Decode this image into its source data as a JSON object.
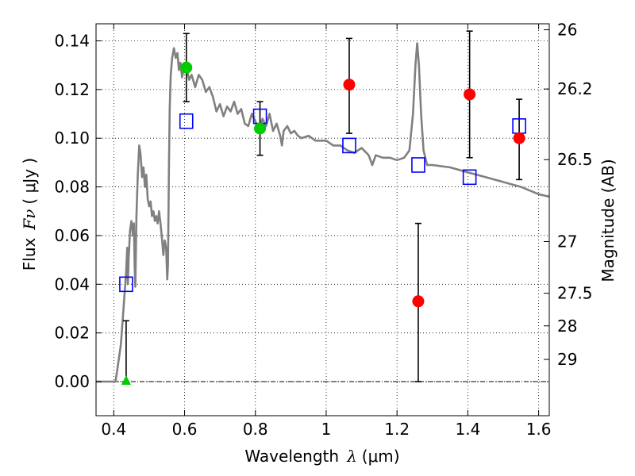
{
  "chart_data": {
    "type": "scatter",
    "xlabel_prefix": "Wavelength",
    "xlabel_symbol": "λ",
    "xlabel_unit": "(μm)",
    "ylabel_prefix": "Flux",
    "ylabel_symbol": "Fν",
    "ylabel_unit": "( μJy )",
    "y2label": "Magnitude (AB)",
    "xlim": [
      0.35,
      1.63
    ],
    "ylim": [
      -0.014,
      0.147
    ],
    "xticks": [
      0.4,
      0.6,
      0.8,
      1.0,
      1.2,
      1.4,
      1.6
    ],
    "xtick_labels": [
      "0.4",
      "0.6",
      "0.8",
      "1",
      "1.2",
      "1.4",
      "1.6"
    ],
    "yticks": [
      0.0,
      0.02,
      0.04,
      0.06,
      0.08,
      0.1,
      0.12,
      0.14
    ],
    "ytick_labels": [
      "0.00",
      "0.02",
      "0.04",
      "0.06",
      "0.08",
      "0.10",
      "0.12",
      "0.14"
    ],
    "magnitude_ticks": [
      {
        "mag": 26.0,
        "label": "26"
      },
      {
        "mag": 26.2,
        "label": "26.2"
      },
      {
        "mag": 26.5,
        "label": "26.5"
      },
      {
        "mag": 27.0,
        "label": "27"
      },
      {
        "mag": 27.5,
        "label": "27.5"
      },
      {
        "mag": 28.0,
        "label": "28"
      },
      {
        "mag": 29.0,
        "label": "29"
      }
    ],
    "grid": true,
    "colors": {
      "model": "#808080",
      "observed_red": "#ff0000",
      "observed_green": "#00cc00",
      "model_photometry": "#0000ff",
      "errorbar": "#000000",
      "zero_line": "#000000"
    },
    "series": [
      {
        "name": "model SED",
        "style": "line",
        "points": [
          [
            0.35,
            0.0
          ],
          [
            0.405,
            0.0
          ],
          [
            0.41,
            0.005
          ],
          [
            0.415,
            0.01
          ],
          [
            0.42,
            0.015
          ],
          [
            0.425,
            0.025
          ],
          [
            0.43,
            0.035
          ],
          [
            0.435,
            0.045
          ],
          [
            0.438,
            0.055
          ],
          [
            0.44,
            0.04
          ],
          [
            0.442,
            0.05
          ],
          [
            0.446,
            0.062
          ],
          [
            0.45,
            0.066
          ],
          [
            0.454,
            0.06
          ],
          [
            0.457,
            0.065
          ],
          [
            0.459,
            0.048
          ],
          [
            0.461,
            0.039
          ],
          [
            0.464,
            0.068
          ],
          [
            0.468,
            0.085
          ],
          [
            0.472,
            0.097
          ],
          [
            0.476,
            0.093
          ],
          [
            0.48,
            0.084
          ],
          [
            0.484,
            0.088
          ],
          [
            0.488,
            0.08
          ],
          [
            0.492,
            0.085
          ],
          [
            0.496,
            0.075
          ],
          [
            0.5,
            0.072
          ],
          [
            0.504,
            0.074
          ],
          [
            0.508,
            0.068
          ],
          [
            0.512,
            0.07
          ],
          [
            0.516,
            0.066
          ],
          [
            0.52,
            0.068
          ],
          [
            0.524,
            0.065
          ],
          [
            0.528,
            0.07
          ],
          [
            0.532,
            0.065
          ],
          [
            0.536,
            0.059
          ],
          [
            0.54,
            0.052
          ],
          [
            0.544,
            0.058
          ],
          [
            0.548,
            0.055
          ],
          [
            0.551,
            0.042
          ],
          [
            0.553,
            0.048
          ],
          [
            0.556,
            0.09
          ],
          [
            0.558,
            0.112
          ],
          [
            0.561,
            0.126
          ],
          [
            0.565,
            0.133
          ],
          [
            0.57,
            0.137
          ],
          [
            0.575,
            0.133
          ],
          [
            0.58,
            0.135
          ],
          [
            0.584,
            0.128
          ],
          [
            0.588,
            0.131
          ],
          [
            0.593,
            0.125
          ],
          [
            0.6,
            0.13
          ],
          [
            0.607,
            0.128
          ],
          [
            0.613,
            0.124
          ],
          [
            0.62,
            0.126
          ],
          [
            0.63,
            0.121
          ],
          [
            0.64,
            0.126
          ],
          [
            0.65,
            0.124
          ],
          [
            0.66,
            0.119
          ],
          [
            0.67,
            0.121
          ],
          [
            0.68,
            0.117
          ],
          [
            0.69,
            0.111
          ],
          [
            0.7,
            0.114
          ],
          [
            0.71,
            0.109
          ],
          [
            0.72,
            0.113
          ],
          [
            0.73,
            0.111
          ],
          [
            0.74,
            0.115
          ],
          [
            0.75,
            0.11
          ],
          [
            0.76,
            0.112
          ],
          [
            0.77,
            0.106
          ],
          [
            0.78,
            0.105
          ],
          [
            0.79,
            0.11
          ],
          [
            0.8,
            0.107
          ],
          [
            0.81,
            0.103
          ],
          [
            0.82,
            0.108
          ],
          [
            0.83,
            0.105
          ],
          [
            0.84,
            0.11
          ],
          [
            0.85,
            0.103
          ],
          [
            0.86,
            0.106
          ],
          [
            0.87,
            0.101
          ],
          [
            0.875,
            0.097
          ],
          [
            0.88,
            0.103
          ],
          [
            0.89,
            0.105
          ],
          [
            0.9,
            0.102
          ],
          [
            0.91,
            0.103
          ],
          [
            0.92,
            0.101
          ],
          [
            0.93,
            0.1
          ],
          [
            0.95,
            0.101
          ],
          [
            0.97,
            0.099
          ],
          [
            1.0,
            0.099
          ],
          [
            1.02,
            0.097
          ],
          [
            1.04,
            0.097
          ],
          [
            1.06,
            0.095
          ],
          [
            1.08,
            0.094
          ],
          [
            1.1,
            0.096
          ],
          [
            1.12,
            0.093
          ],
          [
            1.13,
            0.089
          ],
          [
            1.14,
            0.093
          ],
          [
            1.16,
            0.092
          ],
          [
            1.18,
            0.092
          ],
          [
            1.2,
            0.091
          ],
          [
            1.22,
            0.092
          ],
          [
            1.235,
            0.095
          ],
          [
            1.245,
            0.11
          ],
          [
            1.252,
            0.13
          ],
          [
            1.257,
            0.139
          ],
          [
            1.262,
            0.13
          ],
          [
            1.268,
            0.11
          ],
          [
            1.275,
            0.095
          ],
          [
            1.285,
            0.089
          ],
          [
            1.3,
            0.089
          ],
          [
            1.35,
            0.088
          ],
          [
            1.4,
            0.086
          ],
          [
            1.45,
            0.084
          ],
          [
            1.5,
            0.082
          ],
          [
            1.55,
            0.08
          ],
          [
            1.6,
            0.077
          ],
          [
            1.63,
            0.076
          ]
        ]
      },
      {
        "name": "model photometry",
        "style": "open-square",
        "points": [
          [
            0.435,
            0.04
          ],
          [
            0.605,
            0.107
          ],
          [
            0.813,
            0.109
          ],
          [
            1.065,
            0.097
          ],
          [
            1.26,
            0.089
          ],
          [
            1.405,
            0.084
          ],
          [
            1.545,
            0.105
          ]
        ]
      },
      {
        "name": "observed (red)",
        "style": "circle",
        "points": [
          {
            "x": 1.065,
            "y": 0.122,
            "err_low": 0.102,
            "err_high": 0.141
          },
          {
            "x": 1.26,
            "y": 0.033,
            "err_low": 0.0,
            "err_high": 0.065
          },
          {
            "x": 1.405,
            "y": 0.118,
            "err_low": 0.092,
            "err_high": 0.144
          },
          {
            "x": 1.545,
            "y": 0.1,
            "err_low": 0.083,
            "err_high": 0.116
          }
        ]
      },
      {
        "name": "observed (green)",
        "style": "circle",
        "points": [
          {
            "x": 0.605,
            "y": 0.129,
            "err_low": 0.115,
            "err_high": 0.143
          },
          {
            "x": 0.813,
            "y": 0.104,
            "err_low": 0.093,
            "err_high": 0.115
          }
        ]
      },
      {
        "name": "upper limit (green)",
        "style": "triangle",
        "points": [
          {
            "x": 0.435,
            "y": 0.0,
            "err_low": 0.0,
            "err_high": 0.025
          }
        ]
      }
    ]
  }
}
